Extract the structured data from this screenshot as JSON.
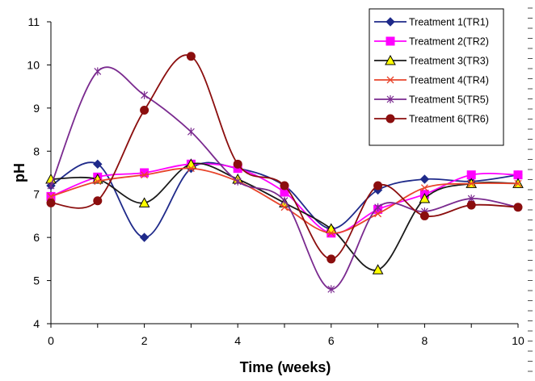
{
  "chart_data": {
    "type": "line",
    "title": "",
    "xlabel": "Time (weeks)",
    "ylabel": "pH",
    "xlim": [
      0,
      10
    ],
    "ylim": [
      4,
      11
    ],
    "x_ticks": [
      0,
      2,
      4,
      6,
      8,
      10
    ],
    "y_ticks": [
      4,
      5,
      6,
      7,
      8,
      9,
      10,
      11
    ],
    "grid": false,
    "legend_position": "top-right",
    "x": [
      0,
      1,
      2,
      3,
      4,
      5,
      6,
      7,
      8,
      9,
      10
    ],
    "series": [
      {
        "name": "Treatment 1(TR1)",
        "color": "#1f2a8a",
        "marker": "diamond",
        "values": [
          7.2,
          7.7,
          6.0,
          7.6,
          7.6,
          7.2,
          6.2,
          7.1,
          7.35,
          7.3,
          7.45
        ]
      },
      {
        "name": "Treatment 2(TR2)",
        "color": "#ff00ff",
        "marker": "square",
        "values": [
          6.95,
          7.4,
          7.5,
          7.7,
          7.6,
          7.05,
          6.1,
          6.65,
          7.0,
          7.45,
          7.45
        ]
      },
      {
        "name": "Treatment 3(TR3)",
        "color": "#1a1a1a",
        "marker": "triangle",
        "values": [
          7.35,
          7.35,
          6.8,
          7.7,
          7.35,
          6.8,
          6.2,
          5.25,
          6.9,
          7.25,
          7.25
        ]
      },
      {
        "name": "Treatment 4(TR4)",
        "color": "#e8452c",
        "marker": "x",
        "values": [
          6.95,
          7.3,
          7.45,
          7.6,
          7.3,
          6.7,
          6.1,
          6.55,
          7.15,
          7.25,
          7.25
        ]
      },
      {
        "name": "Treatment 5(TR5)",
        "color": "#7a2a8f",
        "marker": "asterisk",
        "values": [
          7.2,
          9.85,
          9.3,
          8.45,
          7.3,
          6.85,
          4.8,
          6.7,
          6.6,
          6.9,
          6.7
        ]
      },
      {
        "name": "Treatment 6(TR6)",
        "color": "#8b0e0e",
        "marker": "circle",
        "values": [
          6.8,
          6.85,
          8.95,
          10.2,
          7.7,
          7.2,
          5.5,
          7.2,
          6.5,
          6.75,
          6.7
        ]
      }
    ]
  }
}
